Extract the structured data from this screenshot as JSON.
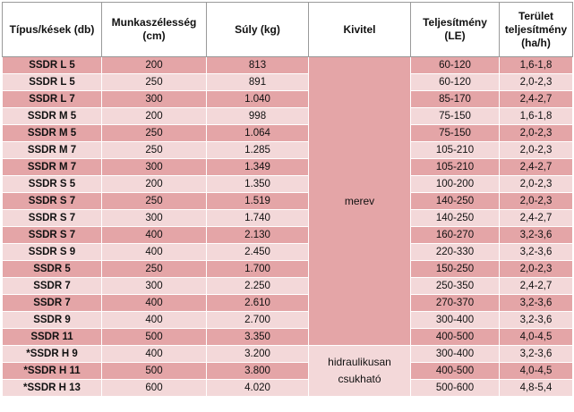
{
  "headers": {
    "tipus": "Típus/kések (db)",
    "munka": "Munkaszélesség (cm)",
    "suly": "Súly (kg)",
    "kivitel": "Kivitel",
    "teljesitmeny": "Teljesítmény (LE)",
    "terulet": "Terület teljesítmény (ha/h)"
  },
  "kivitel_groups": [
    "merev",
    "hidraulikusan csukható"
  ],
  "rows": [
    {
      "type": "SSDR L 5",
      "width": "200",
      "weight": "813",
      "power": "60-120",
      "area": "1,6-1,8"
    },
    {
      "type": "SSDR L 5",
      "width": "250",
      "weight": "891",
      "power": "60-120",
      "area": "2,0-2,3"
    },
    {
      "type": "SSDR L 7",
      "width": "300",
      "weight": "1.040",
      "power": "85-170",
      "area": "2,4-2,7"
    },
    {
      "type": "SSDR M 5",
      "width": "200",
      "weight": "998",
      "power": "75-150",
      "area": "1,6-1,8"
    },
    {
      "type": "SSDR M 5",
      "width": "250",
      "weight": "1.064",
      "power": "75-150",
      "area": "2,0-2,3"
    },
    {
      "type": "SSDR M 7",
      "width": "250",
      "weight": "1.285",
      "power": "105-210",
      "area": "2,0-2,3"
    },
    {
      "type": "SSDR M 7",
      "width": "300",
      "weight": "1.349",
      "power": "105-210",
      "area": "2,4-2,7"
    },
    {
      "type": "SSDR S 5",
      "width": "200",
      "weight": "1.350",
      "power": "100-200",
      "area": "2,0-2,3"
    },
    {
      "type": "SSDR S 7",
      "width": "250",
      "weight": "1.519",
      "power": "140-250",
      "area": "2,0-2,3"
    },
    {
      "type": "SSDR S 7",
      "width": "300",
      "weight": "1.740",
      "power": "140-250",
      "area": "2,4-2,7"
    },
    {
      "type": "SSDR S 7",
      "width": "400",
      "weight": "2.130",
      "power": "160-270",
      "area": "3,2-3,6"
    },
    {
      "type": "SSDR S 9",
      "width": "400",
      "weight": "2.450",
      "power": "220-330",
      "area": "3,2-3,6"
    },
    {
      "type": "SSDR 5",
      "width": "250",
      "weight": "1.700",
      "power": "150-250",
      "area": "2,0-2,3"
    },
    {
      "type": "SSDR 7",
      "width": "300",
      "weight": "2.250",
      "power": "250-350",
      "area": "2,4-2,7"
    },
    {
      "type": "SSDR 7",
      "width": "400",
      "weight": "2.610",
      "power": "270-370",
      "area": "3,2-3,6"
    },
    {
      "type": "SSDR 9",
      "width": "400",
      "weight": "2.700",
      "power": "300-400",
      "area": "3,2-3,6"
    },
    {
      "type": "SSDR 11",
      "width": "500",
      "weight": "3.350",
      "power": "400-500",
      "area": "4,0-4,5"
    },
    {
      "type": "*SSDR H 9",
      "width": "400",
      "weight": "3.200",
      "power": "300-400",
      "area": "3,2-3,6"
    },
    {
      "type": "*SSDR H 11",
      "width": "500",
      "weight": "3.800",
      "power": "400-500",
      "area": "4,0-4,5"
    },
    {
      "type": "*SSDR H 13",
      "width": "600",
      "weight": "4.020",
      "power": "500-600",
      "area": "4,8-5,4"
    }
  ]
}
